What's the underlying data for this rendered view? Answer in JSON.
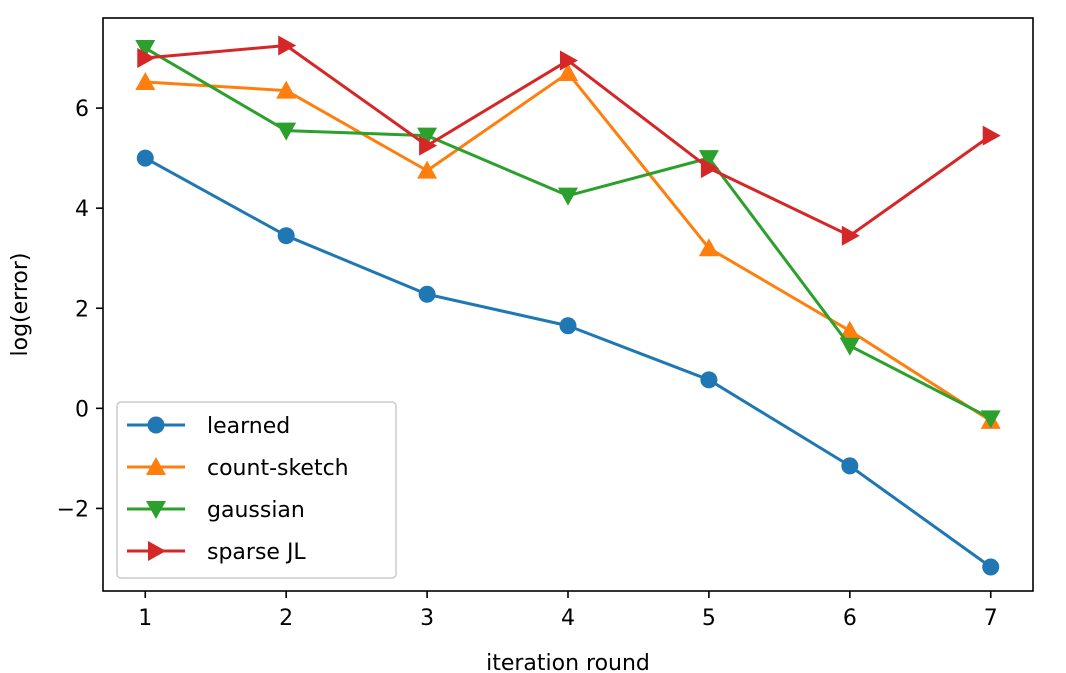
{
  "chart_data": {
    "type": "line",
    "xlabel": "iteration round",
    "ylabel": "log(error)",
    "x": [
      1,
      2,
      3,
      4,
      5,
      6,
      7
    ],
    "xticks": [
      "1",
      "2",
      "3",
      "4",
      "5",
      "6",
      "7"
    ],
    "xlim": [
      0.7,
      7.3
    ],
    "yticks": [
      "−2",
      "0",
      "2",
      "4",
      "6"
    ],
    "ytick_values": [
      -2,
      0,
      2,
      4,
      6
    ],
    "ylim": [
      -3.65,
      7.8
    ],
    "grid": false,
    "legend_placement": "lower-left",
    "series": [
      {
        "name": "learned",
        "color": "#1f77b4",
        "marker": "circle",
        "values": [
          5.0,
          3.45,
          2.28,
          1.65,
          0.57,
          -1.15,
          -3.17
        ]
      },
      {
        "name": "count-sketch",
        "color": "#ff7f0e",
        "marker": "triangle-up",
        "values": [
          6.52,
          6.35,
          4.75,
          6.7,
          3.2,
          1.55,
          -0.25
        ]
      },
      {
        "name": "gaussian",
        "color": "#2ca02c",
        "marker": "triangle-down",
        "values": [
          7.2,
          5.55,
          5.45,
          4.25,
          5.0,
          1.25,
          -0.2
        ]
      },
      {
        "name": "sparse JL",
        "color": "#d62728",
        "marker": "triangle-right",
        "values": [
          7.0,
          7.25,
          5.25,
          6.95,
          4.8,
          3.45,
          5.45
        ]
      }
    ]
  }
}
